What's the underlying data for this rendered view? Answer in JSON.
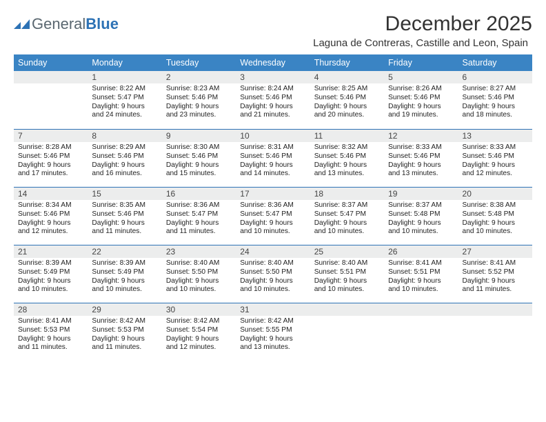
{
  "logo": {
    "general": "General",
    "blue": "Blue"
  },
  "title": "December 2025",
  "location": "Laguna de Contreras, Castille and Leon, Spain",
  "dayNames": [
    "Sunday",
    "Monday",
    "Tuesday",
    "Wednesday",
    "Thursday",
    "Friday",
    "Saturday"
  ],
  "colors": {
    "headerBg": "#3a84c4",
    "weekBorder": "#2d72b5",
    "dayNumBg": "#eceded",
    "text": "#222222",
    "logoGray": "#5a6770",
    "logoBlue": "#2d72b5"
  },
  "fonts": {
    "title_size": 30,
    "location_size": 15,
    "dayhead_size": 12.5,
    "daynum_size": 12,
    "body_size": 10.2
  },
  "first_day_of_week": 0,
  "start_weekday": 1,
  "days": [
    {
      "n": 1,
      "sunrise": "8:22 AM",
      "sunset": "5:47 PM",
      "daylight": "9 hours and 24 minutes."
    },
    {
      "n": 2,
      "sunrise": "8:23 AM",
      "sunset": "5:46 PM",
      "daylight": "9 hours and 23 minutes."
    },
    {
      "n": 3,
      "sunrise": "8:24 AM",
      "sunset": "5:46 PM",
      "daylight": "9 hours and 21 minutes."
    },
    {
      "n": 4,
      "sunrise": "8:25 AM",
      "sunset": "5:46 PM",
      "daylight": "9 hours and 20 minutes."
    },
    {
      "n": 5,
      "sunrise": "8:26 AM",
      "sunset": "5:46 PM",
      "daylight": "9 hours and 19 minutes."
    },
    {
      "n": 6,
      "sunrise": "8:27 AM",
      "sunset": "5:46 PM",
      "daylight": "9 hours and 18 minutes."
    },
    {
      "n": 7,
      "sunrise": "8:28 AM",
      "sunset": "5:46 PM",
      "daylight": "9 hours and 17 minutes."
    },
    {
      "n": 8,
      "sunrise": "8:29 AM",
      "sunset": "5:46 PM",
      "daylight": "9 hours and 16 minutes."
    },
    {
      "n": 9,
      "sunrise": "8:30 AM",
      "sunset": "5:46 PM",
      "daylight": "9 hours and 15 minutes."
    },
    {
      "n": 10,
      "sunrise": "8:31 AM",
      "sunset": "5:46 PM",
      "daylight": "9 hours and 14 minutes."
    },
    {
      "n": 11,
      "sunrise": "8:32 AM",
      "sunset": "5:46 PM",
      "daylight": "9 hours and 13 minutes."
    },
    {
      "n": 12,
      "sunrise": "8:33 AM",
      "sunset": "5:46 PM",
      "daylight": "9 hours and 13 minutes."
    },
    {
      "n": 13,
      "sunrise": "8:33 AM",
      "sunset": "5:46 PM",
      "daylight": "9 hours and 12 minutes."
    },
    {
      "n": 14,
      "sunrise": "8:34 AM",
      "sunset": "5:46 PM",
      "daylight": "9 hours and 12 minutes."
    },
    {
      "n": 15,
      "sunrise": "8:35 AM",
      "sunset": "5:46 PM",
      "daylight": "9 hours and 11 minutes."
    },
    {
      "n": 16,
      "sunrise": "8:36 AM",
      "sunset": "5:47 PM",
      "daylight": "9 hours and 11 minutes."
    },
    {
      "n": 17,
      "sunrise": "8:36 AM",
      "sunset": "5:47 PM",
      "daylight": "9 hours and 10 minutes."
    },
    {
      "n": 18,
      "sunrise": "8:37 AM",
      "sunset": "5:47 PM",
      "daylight": "9 hours and 10 minutes."
    },
    {
      "n": 19,
      "sunrise": "8:37 AM",
      "sunset": "5:48 PM",
      "daylight": "9 hours and 10 minutes."
    },
    {
      "n": 20,
      "sunrise": "8:38 AM",
      "sunset": "5:48 PM",
      "daylight": "9 hours and 10 minutes."
    },
    {
      "n": 21,
      "sunrise": "8:39 AM",
      "sunset": "5:49 PM",
      "daylight": "9 hours and 10 minutes."
    },
    {
      "n": 22,
      "sunrise": "8:39 AM",
      "sunset": "5:49 PM",
      "daylight": "9 hours and 10 minutes."
    },
    {
      "n": 23,
      "sunrise": "8:40 AM",
      "sunset": "5:50 PM",
      "daylight": "9 hours and 10 minutes."
    },
    {
      "n": 24,
      "sunrise": "8:40 AM",
      "sunset": "5:50 PM",
      "daylight": "9 hours and 10 minutes."
    },
    {
      "n": 25,
      "sunrise": "8:40 AM",
      "sunset": "5:51 PM",
      "daylight": "9 hours and 10 minutes."
    },
    {
      "n": 26,
      "sunrise": "8:41 AM",
      "sunset": "5:51 PM",
      "daylight": "9 hours and 10 minutes."
    },
    {
      "n": 27,
      "sunrise": "8:41 AM",
      "sunset": "5:52 PM",
      "daylight": "9 hours and 11 minutes."
    },
    {
      "n": 28,
      "sunrise": "8:41 AM",
      "sunset": "5:53 PM",
      "daylight": "9 hours and 11 minutes."
    },
    {
      "n": 29,
      "sunrise": "8:42 AM",
      "sunset": "5:53 PM",
      "daylight": "9 hours and 11 minutes."
    },
    {
      "n": 30,
      "sunrise": "8:42 AM",
      "sunset": "5:54 PM",
      "daylight": "9 hours and 12 minutes."
    },
    {
      "n": 31,
      "sunrise": "8:42 AM",
      "sunset": "5:55 PM",
      "daylight": "9 hours and 13 minutes."
    }
  ],
  "labels": {
    "sunrise": "Sunrise:",
    "sunset": "Sunset:",
    "daylight": "Daylight:"
  }
}
